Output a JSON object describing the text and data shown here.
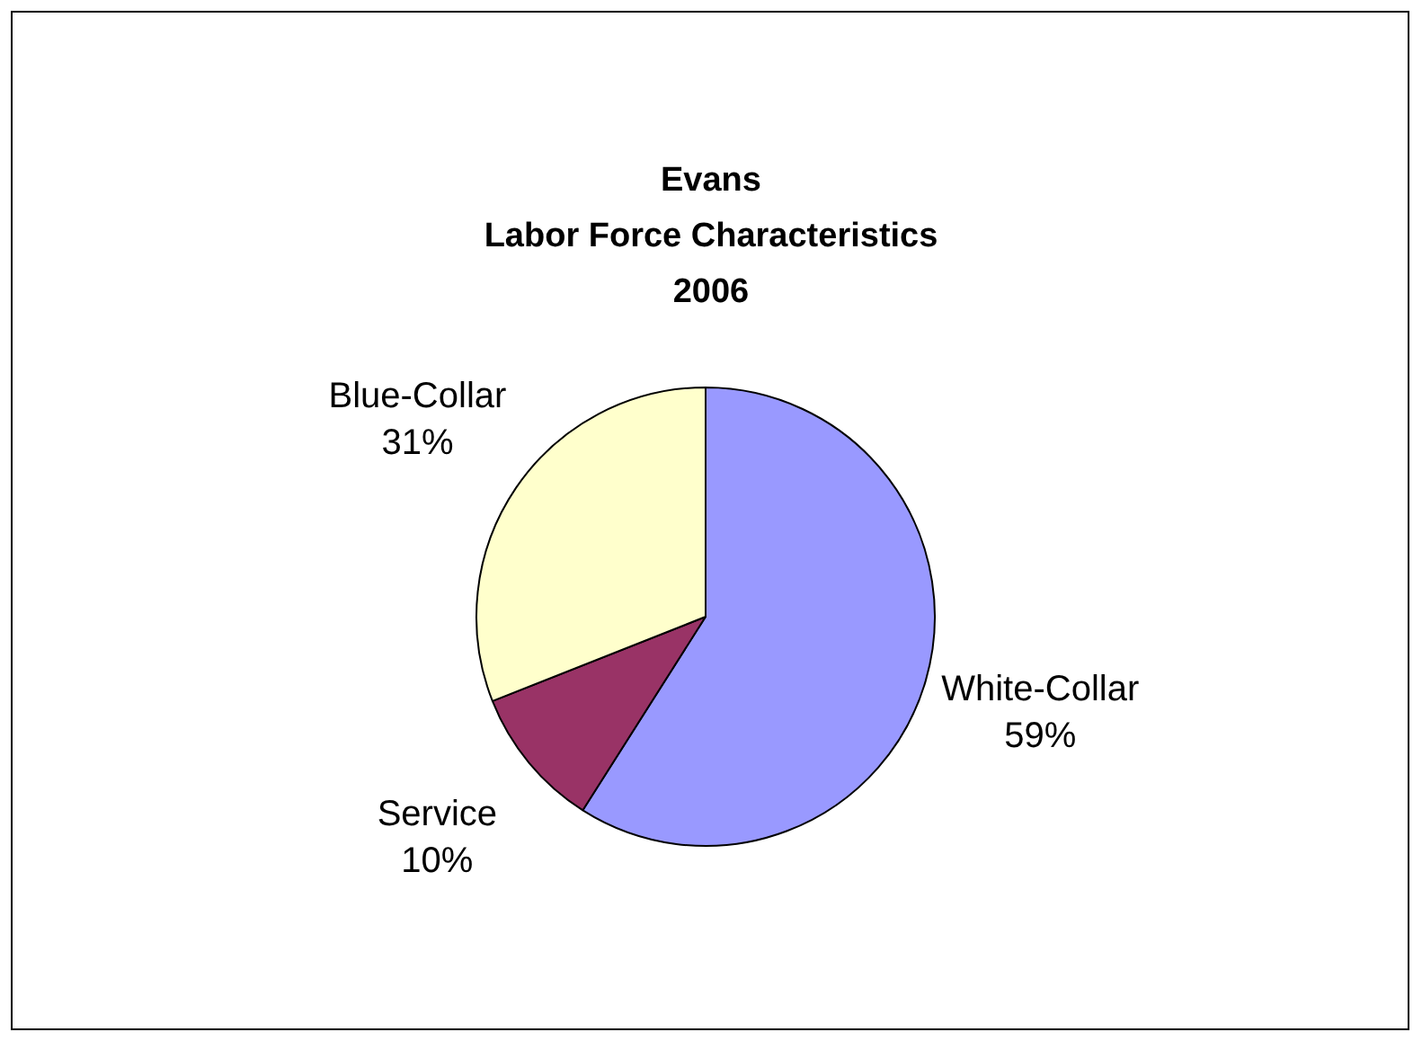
{
  "chart_data": {
    "type": "pie",
    "title": "Evans\nLabor Force Characteristics\n2006",
    "categories": [
      "White-Collar",
      "Service",
      "Blue-Collar"
    ],
    "values": [
      59,
      10,
      31
    ],
    "value_labels": [
      "59%",
      "10%",
      "31%"
    ],
    "colors": [
      "#9999ff",
      "#993366",
      "#ffffcc"
    ],
    "legend": false
  }
}
